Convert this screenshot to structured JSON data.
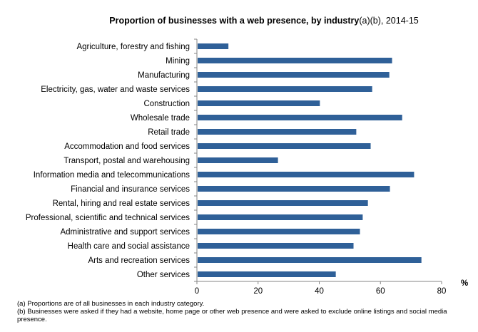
{
  "chart_data": {
    "type": "bar",
    "orientation": "horizontal",
    "title": "Proportion of businesses  with a web presence, by industry",
    "title_suffix": "(a)(b),  2014-15",
    "xlabel": "%",
    "xlim": [
      0,
      80
    ],
    "xticks": [
      0,
      20,
      40,
      60,
      80
    ],
    "grid": false,
    "color": "#2F6098",
    "categories": [
      "Agriculture, forestry and fishing",
      "Mining",
      "Manufacturing",
      "Electricity, gas, water and waste services",
      "Construction",
      "Wholesale trade",
      "Retail trade",
      "Accommodation and food services",
      "Transport, postal and warehousing",
      "Information media and telecommunications",
      "Financial and insurance services",
      "Rental, hiring and real estate services",
      "Professional, scientific and technical services",
      "Administrative and support services",
      "Health care and social assistance",
      "Arts and recreation services",
      "Other services"
    ],
    "values": [
      10.3,
      63.8,
      62.9,
      57.3,
      40.2,
      67.1,
      52.1,
      56.8,
      26.5,
      71.0,
      63.1,
      55.9,
      54.2,
      53.3,
      51.2,
      73.4,
      45.4
    ]
  },
  "footnotes": [
    "(a) Proportions are of all businesses in each industry category.",
    "(b) Businesses were asked if they had a website, home page or other web presence and were asked to exclude online listings and social media presence."
  ]
}
